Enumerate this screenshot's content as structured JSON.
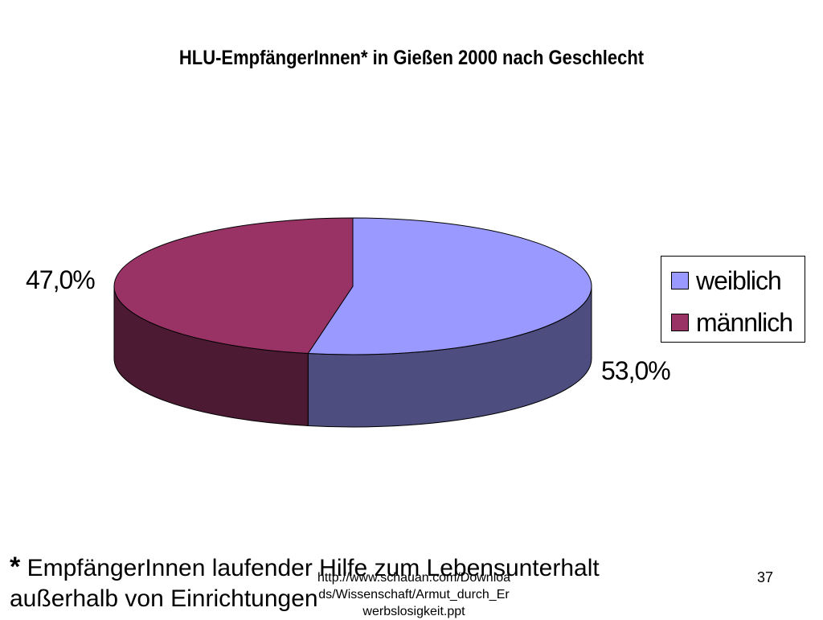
{
  "chart_data": {
    "type": "pie",
    "title": "HLU-EmpfängerInnen* in Gießen 2000 nach Geschlecht",
    "categories": [
      "weiblich",
      "männlich"
    ],
    "values": [
      53.0,
      47.0
    ],
    "value_labels": [
      "53,0%",
      "47,0%"
    ],
    "unit": "%",
    "three_d": true,
    "legend": {
      "position": "right",
      "entries": [
        "weiblich",
        "männlich"
      ]
    },
    "colors": {
      "weiblich": {
        "top": "#9999ff",
        "side": "#4d4d80"
      },
      "männlich": {
        "top": "#993366",
        "side": "#4d1a33"
      }
    }
  },
  "footnote": {
    "marker": "*",
    "text": " EmpfängerInnen laufender Hilfe zum Lebensunterhalt",
    "line2": "außerhalb von Einrichtungen"
  },
  "source": "http://www.schauan.com/Downloa\nds/Wissenschaft/Armut_durch_Er\nwerbslosigkeit.ppt",
  "page_number": "37"
}
